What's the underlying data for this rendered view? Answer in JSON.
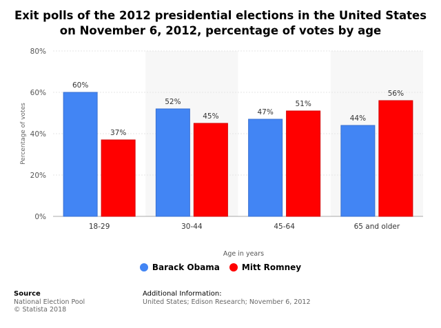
{
  "chart_data": {
    "type": "bar",
    "title": "Exit polls of the 2012 presidential elections in the United States on November 6, 2012, percentage of votes by age",
    "xlabel": "Age in years",
    "ylabel": "Percentage of votes",
    "categories": [
      "18-29",
      "30-44",
      "45-64",
      "65 and older"
    ],
    "ylim": [
      0,
      80
    ],
    "yticks": [
      "0%",
      "20%",
      "40%",
      "60%",
      "80%"
    ],
    "ytick_values": [
      0,
      20,
      40,
      60,
      80
    ],
    "grid": true,
    "legend_position": "bottom",
    "series": [
      {
        "name": "Barack Obama",
        "color": "#4285f4",
        "values": [
          60,
          52,
          47,
          44
        ],
        "labels": [
          "60%",
          "52%",
          "47%",
          "44%"
        ]
      },
      {
        "name": "Mitt Romney",
        "color": "#ff0000",
        "values": [
          37,
          45,
          51,
          56
        ],
        "labels": [
          "37%",
          "45%",
          "51%",
          "56%"
        ]
      }
    ]
  },
  "footer": {
    "source_heading": "Source",
    "source_lines": [
      "National Election Pool",
      "© Statista 2018"
    ],
    "info_heading": "Additional Information:",
    "info_line": "United States; Edison Research; November 6, 2012"
  }
}
